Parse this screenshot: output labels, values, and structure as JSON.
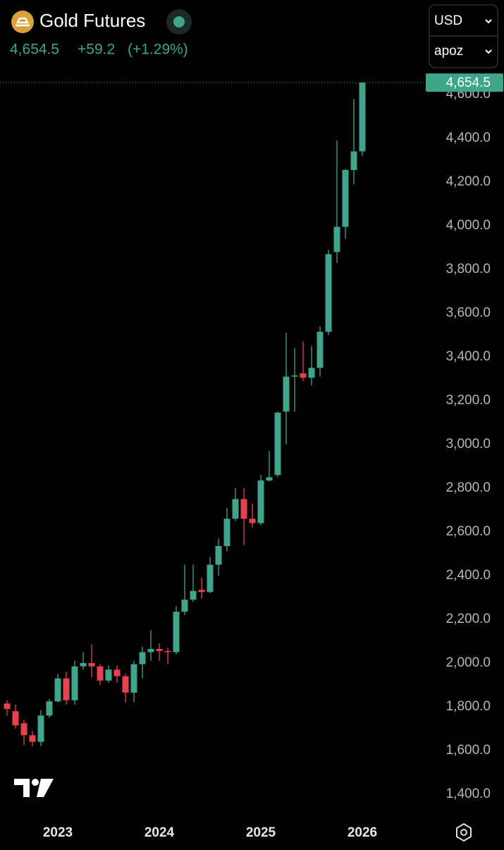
{
  "header": {
    "title": "Gold Futures",
    "price": "4,654.5",
    "change": "+59.2",
    "change_pct": "(+1.29%)",
    "currency": "USD",
    "unit": "apoz"
  },
  "chart_data": {
    "type": "candlestick",
    "categories": [
      null,
      null,
      null,
      null,
      null,
      null,
      "2023",
      null,
      null,
      null,
      null,
      null,
      null,
      null,
      null,
      null,
      null,
      null,
      "2024",
      null,
      null,
      null,
      null,
      null,
      null,
      null,
      null,
      null,
      null,
      null,
      "2025",
      null,
      null,
      null,
      null,
      null,
      null,
      null,
      null,
      null,
      null,
      null,
      "2026"
    ],
    "open": [
      1815,
      1780,
      1725,
      1670,
      1640,
      1760,
      1825,
      1930,
      1830,
      1985,
      2000,
      1985,
      1920,
      1970,
      1940,
      1865,
      1995,
      2050,
      2065,
      2055,
      2050,
      2235,
      2290,
      2335,
      2325,
      2450,
      2535,
      2660,
      2750,
      2660,
      2640,
      2835,
      2860,
      3150,
      3310,
      3325,
      3305,
      3350,
      3515,
      3880,
      3995,
      4255,
      4340
    ],
    "high": [
      1830,
      1810,
      1740,
      1690,
      1785,
      1835,
      1950,
      1960,
      2010,
      2050,
      2085,
      1995,
      1990,
      1990,
      1950,
      2010,
      2075,
      2150,
      2090,
      2070,
      2260,
      2450,
      2450,
      2390,
      2485,
      2570,
      2710,
      2800,
      2800,
      2730,
      2860,
      2970,
      3150,
      3510,
      3440,
      3470,
      3450,
      3540,
      3890,
      4390,
      4260,
      4580,
      4654.5
    ],
    "low": [
      1760,
      1700,
      1625,
      1620,
      1620,
      1750,
      1820,
      1810,
      1810,
      1970,
      1935,
      1900,
      1910,
      1910,
      1820,
      1820,
      1930,
      2010,
      2010,
      1995,
      2040,
      2220,
      2280,
      2295,
      2320,
      2400,
      2510,
      2650,
      2540,
      2620,
      2630,
      2830,
      2850,
      3000,
      3150,
      3290,
      3270,
      3310,
      3500,
      3830,
      3940,
      4190,
      4320
    ],
    "close": [
      1790,
      1715,
      1670,
      1640,
      1760,
      1825,
      1930,
      1830,
      1985,
      2000,
      1985,
      1920,
      1970,
      1940,
      1865,
      1995,
      2050,
      2065,
      2055,
      2050,
      2235,
      2290,
      2330,
      2325,
      2450,
      2535,
      2660,
      2750,
      2660,
      2640,
      2835,
      2850,
      3145,
      3310,
      3315,
      3305,
      3350,
      3515,
      3870,
      3995,
      4255,
      4340,
      4654.5
    ],
    "up_color": "#3fa58a",
    "down_color": "#e5424d",
    "last_value": 4654.5,
    "last_value_label": "4,654.5",
    "ylim": [
      1322.6,
      5032.3
    ],
    "yticks": [
      {
        "value": 1400,
        "label": "1,400.0"
      },
      {
        "value": 1600,
        "label": "1,600.0"
      },
      {
        "value": 1800,
        "label": "1,800.0"
      },
      {
        "value": 2000,
        "label": "2,000.0"
      },
      {
        "value": 2200,
        "label": "2,200.0"
      },
      {
        "value": 2400,
        "label": "2,400.0"
      },
      {
        "value": 2600,
        "label": "2,600.0"
      },
      {
        "value": 2800,
        "label": "2,800.0"
      },
      {
        "value": 3000,
        "label": "3,000.0"
      },
      {
        "value": 3200,
        "label": "3,200.0"
      },
      {
        "value": 3400,
        "label": "3,400.0"
      },
      {
        "value": 3600,
        "label": "3,600.0"
      },
      {
        "value": 3800,
        "label": "3,800.0"
      },
      {
        "value": 4000,
        "label": "4,000.0"
      },
      {
        "value": 4200,
        "label": "4,200.0"
      },
      {
        "value": 4400,
        "label": "4,400.0"
      },
      {
        "value": 4600,
        "label": "4,600.0"
      }
    ]
  }
}
